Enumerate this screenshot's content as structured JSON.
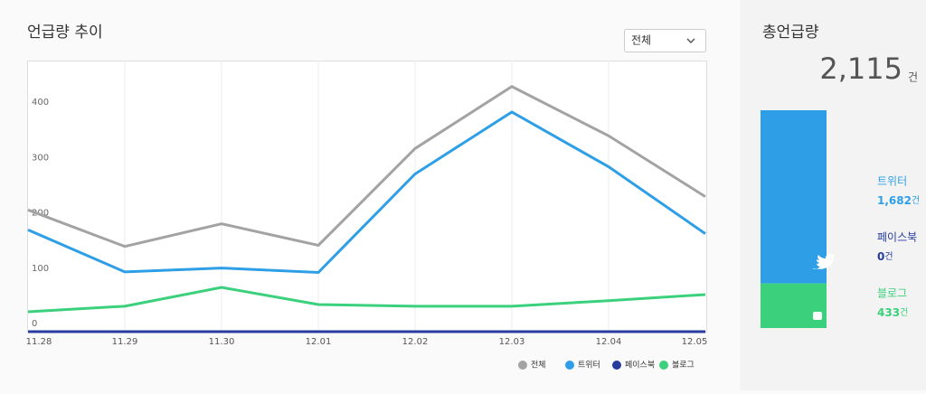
{
  "header": {
    "title": "언급량 추이",
    "dropdown": "전체"
  },
  "summary": {
    "title": "총언급량",
    "total": "2,115",
    "unit": "건"
  },
  "chart_data": [
    {
      "type": "line",
      "categories": [
        "11.28",
        "11.29",
        "11.30",
        "12.01",
        "12.02",
        "12.03",
        "12.04",
        "12.05"
      ],
      "ylim": [
        0,
        490
      ],
      "yticks": [
        0,
        100,
        200,
        300,
        400
      ],
      "grid": true,
      "series": [
        {
          "name": "전체",
          "color": "#a3a3a3",
          "values": [
            220,
            154,
            195,
            156,
            331,
            443,
            354,
            244
          ]
        },
        {
          "name": "트위터",
          "color": "#2e9fe6",
          "values": [
            184,
            108,
            115,
            107,
            285,
            397,
            298,
            177
          ]
        },
        {
          "name": "페이스북",
          "color": "#263c9e",
          "values": [
            0,
            0,
            0,
            0,
            0,
            0,
            0,
            0
          ]
        },
        {
          "name": "블로그",
          "color": "#3ad07c",
          "values": [
            36,
            46,
            80,
            49,
            46,
            46,
            56,
            67
          ]
        }
      ]
    },
    {
      "type": "bar",
      "stacked": true,
      "unit": "건",
      "series": [
        {
          "name": "트위터",
          "color": "#2e9fe6",
          "values": [
            1682
          ],
          "value_labels": [
            "1,682"
          ]
        },
        {
          "name": "페이스북",
          "color": "#263c9e",
          "values": [
            0
          ],
          "value_labels": [
            "0"
          ]
        },
        {
          "name": "블로그",
          "color": "#3ad07c",
          "values": [
            433
          ],
          "value_labels": [
            "433"
          ]
        }
      ]
    }
  ]
}
